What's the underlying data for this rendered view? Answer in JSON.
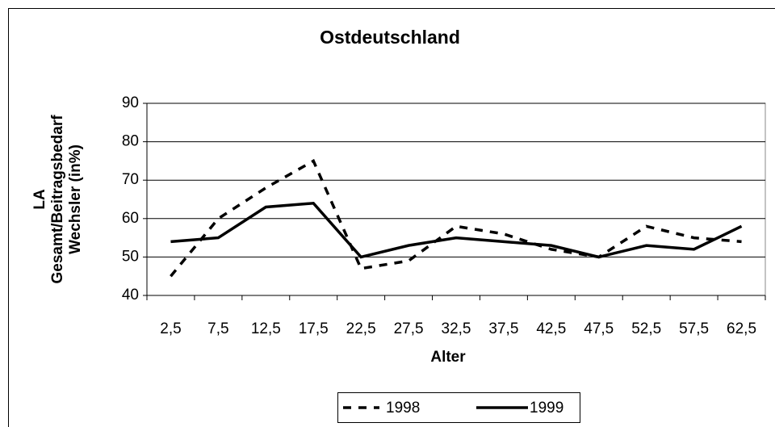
{
  "chart_data": {
    "type": "line",
    "title": "Ostdeutschland",
    "y_label": [
      "LA",
      "Gesamt/Beitragsbedarf",
      "Wechsler (in%)"
    ],
    "x_label": "Alter",
    "categories": [
      "2,5",
      "7,5",
      "12,5",
      "17,5",
      "22,5",
      "27,5",
      "32,5",
      "37,5",
      "42,5",
      "47,5",
      "52,5",
      "57,5",
      "62,5"
    ],
    "series": [
      {
        "name": "1998",
        "color": "#000000",
        "style": "dashed",
        "values": [
          45,
          60,
          68,
          75,
          47,
          49,
          58,
          56,
          52,
          50,
          58,
          55,
          54
        ]
      },
      {
        "name": "1999",
        "color": "#000000",
        "style": "solid",
        "values": [
          54,
          55,
          63,
          64,
          50,
          53,
          55,
          54,
          53,
          50,
          53,
          52,
          58
        ]
      }
    ],
    "ylim": [
      40,
      90
    ],
    "yticks": [
      40,
      50,
      60,
      70,
      80,
      90
    ],
    "grid": true,
    "legend": "bottom"
  }
}
